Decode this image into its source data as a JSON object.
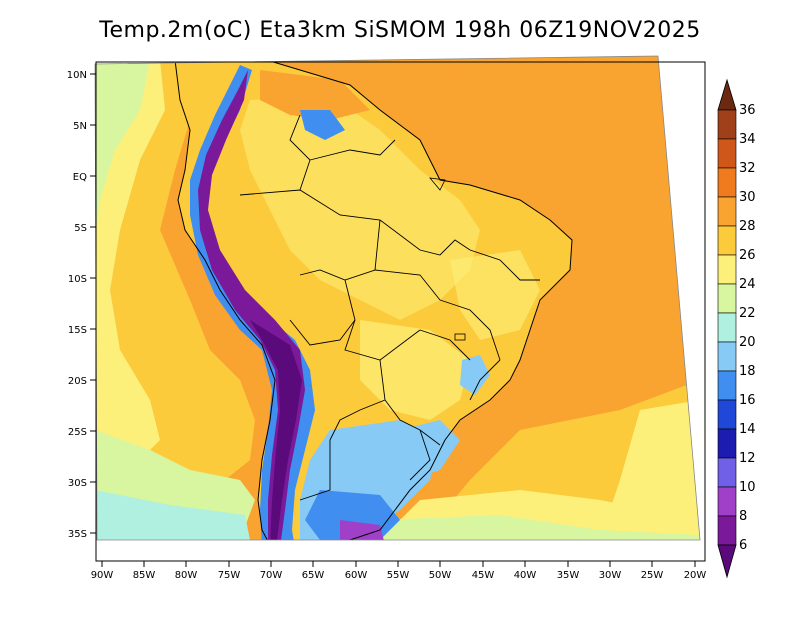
{
  "title": "Temp.2m(oC) Eta3km SiSMOM 198h 06Z19NOV2025",
  "lat_labels": [
    "10N",
    "5N",
    "EQ",
    "5S",
    "10S",
    "15S",
    "20S",
    "25S",
    "30S",
    "35S"
  ],
  "lon_labels": [
    "90W",
    "85W",
    "80W",
    "75W",
    "70W",
    "65W",
    "60W",
    "55W",
    "50W",
    "45W",
    "40W",
    "35W",
    "30W",
    "25W",
    "20W"
  ],
  "colorbar": {
    "values": [
      "36",
      "34",
      "32",
      "30",
      "28",
      "26",
      "24",
      "22",
      "20",
      "18",
      "16",
      "14",
      "12",
      "10",
      "8",
      "6"
    ],
    "colors": [
      "#6b2a10",
      "#a0401a",
      "#d0571a",
      "#f07a1e",
      "#f9a331",
      "#fccb3c",
      "#fdf07a",
      "#d8f5a0",
      "#b0f0e0",
      "#86caf5",
      "#3f8ef0",
      "#1f47d8",
      "#1c1cb0",
      "#7060e8",
      "#a040c8",
      "#7a1a9a",
      "#5a0a7a"
    ]
  },
  "colors": {
    "ocean_warm": "#f9a331",
    "ocean_mid": "#fccb3c",
    "ocean_cool": "#fdf07a",
    "coast_cool": "#d8f5a0",
    "land_base": "#fccb3c",
    "andes_low": "#3f8ef0",
    "andes_high": "#7a1a9a",
    "south_cold": "#1f47d8"
  }
}
